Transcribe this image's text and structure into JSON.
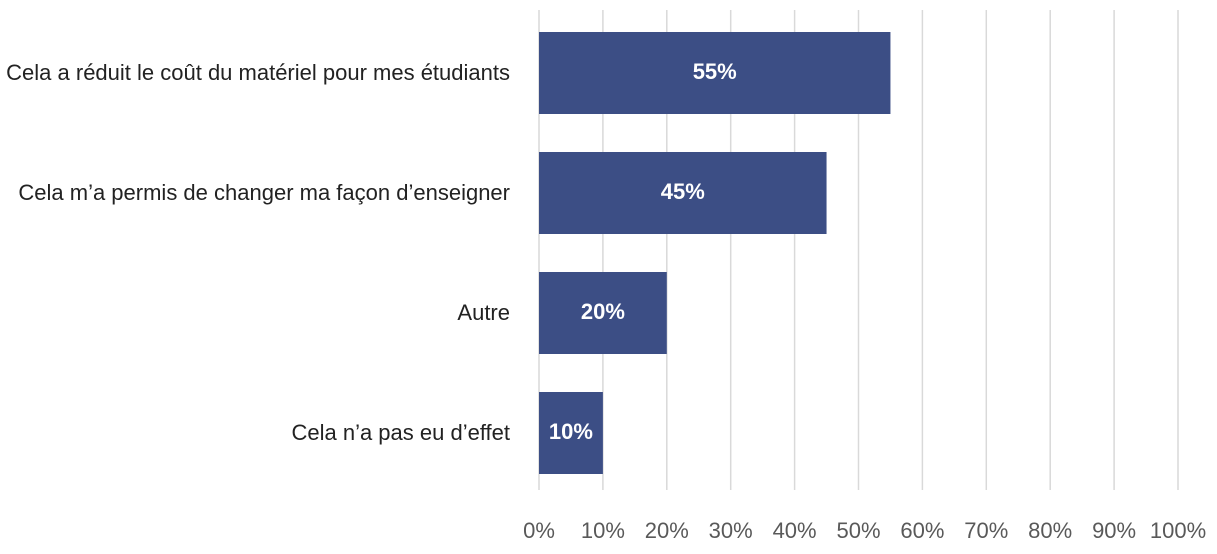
{
  "chart_data": {
    "type": "bar",
    "orientation": "horizontal",
    "categories": [
      "Cela a réduit le coût du matériel pour mes étudiants",
      "Cela m’a permis de changer ma façon d’enseigner",
      "Autre",
      "Cela n’a pas eu d’effet"
    ],
    "values": [
      55,
      45,
      20,
      10
    ],
    "value_labels": [
      "55%",
      "45%",
      "20%",
      "10%"
    ],
    "color": "#3c4e85",
    "xlim": [
      0,
      100
    ],
    "xticks": [
      {
        "value": 0,
        "label": "0%"
      },
      {
        "value": 10,
        "label": "10%"
      },
      {
        "value": 20,
        "label": "20%"
      },
      {
        "value": 30,
        "label": "30%"
      },
      {
        "value": 40,
        "label": "40%"
      },
      {
        "value": 50,
        "label": "50%"
      },
      {
        "value": 60,
        "label": "60%"
      },
      {
        "value": 70,
        "label": "70%"
      },
      {
        "value": 80,
        "label": "80%"
      },
      {
        "value": 90,
        "label": "90%"
      },
      {
        "value": 100,
        "label": "100%"
      }
    ],
    "grid": true
  }
}
